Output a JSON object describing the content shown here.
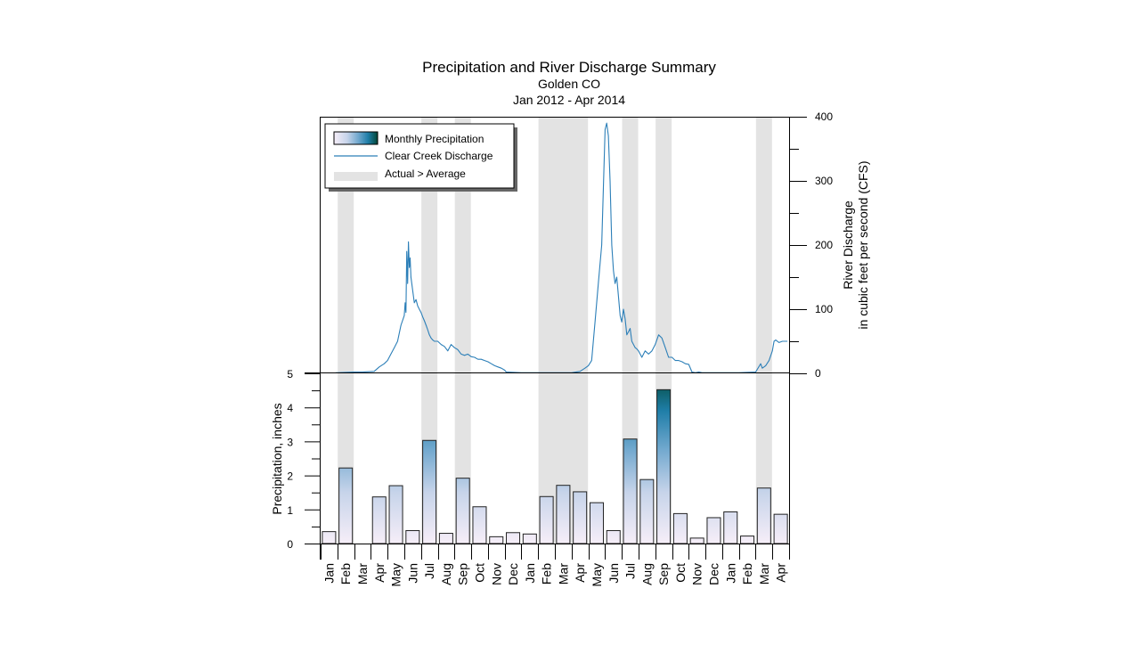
{
  "chart_data": {
    "type": "bar+line",
    "title": "Precipitation and River Discharge Summary",
    "subtitle_location": "Golden CO",
    "subtitle_period": "Jan 2012 - Apr 2014",
    "legend": {
      "position": "top-left",
      "precip_label": "Monthly Precipitation",
      "discharge_label": "Clear Creek Discharge",
      "above_avg_label": "Actual > Average"
    },
    "months": [
      "Jan",
      "Feb",
      "Mar",
      "Apr",
      "May",
      "Jun",
      "Jul",
      "Aug",
      "Sep",
      "Oct",
      "Nov",
      "Dec",
      "Jan",
      "Feb",
      "Mar",
      "Apr",
      "May",
      "Jun",
      "Jul",
      "Aug",
      "Sep",
      "Oct",
      "Nov",
      "Dec",
      "Jan",
      "Feb",
      "Mar",
      "Apr"
    ],
    "precip_series_name": "Monthly Precipitation (inches)",
    "precipitation": [
      0.35,
      2.22,
      0.0,
      1.37,
      1.7,
      0.38,
      3.03,
      0.3,
      1.92,
      1.08,
      0.2,
      0.32,
      0.28,
      1.38,
      1.71,
      1.52,
      1.2,
      0.38,
      3.07,
      1.88,
      4.52,
      0.88,
      0.16,
      0.76,
      0.93,
      0.22,
      1.63,
      0.86
    ],
    "above_average_months": [
      "Feb 2012",
      "Jul 2012",
      "Sep 2012",
      "Feb 2013",
      "Mar 2013",
      "Apr 2013",
      "Jul 2013",
      "Sep 2013",
      "Mar 2014"
    ],
    "above_average_indices": [
      1,
      6,
      8,
      13,
      14,
      15,
      18,
      20,
      26
    ],
    "precip_axis": {
      "label": "Precipitation, inches",
      "ylim": [
        0,
        5
      ],
      "ticks": [
        0,
        1,
        2,
        3,
        4,
        5
      ]
    },
    "discharge_axis": {
      "label_line1": "River Discharge",
      "label_line2": "in cubic feet per second (CFS)",
      "ylim": [
        0,
        400
      ],
      "ticks": [
        0,
        100,
        200,
        300,
        400
      ]
    },
    "discharge_series_name": "Clear Creek Discharge (CFS)",
    "discharge": {
      "t": [
        0.9,
        1.0,
        2.0,
        2.5,
        3.2,
        3.5,
        3.8,
        4.0,
        4.2,
        4.4,
        4.6,
        4.8,
        5.0,
        5.05,
        5.1,
        5.15,
        5.2,
        5.25,
        5.3,
        5.35,
        5.4,
        5.5,
        5.6,
        5.7,
        5.8,
        5.9,
        6.0,
        6.1,
        6.2,
        6.3,
        6.4,
        6.5,
        6.6,
        6.7,
        6.8,
        6.9,
        7.0,
        7.2,
        7.4,
        7.6,
        7.8,
        8.0,
        8.2,
        8.4,
        8.6,
        8.8,
        9.0,
        9.2,
        9.4,
        9.6,
        9.8,
        10.0,
        10.2,
        10.4,
        10.6,
        10.8,
        11.0,
        11.1,
        12.0,
        13.0,
        14.0,
        15.0,
        15.5,
        15.8,
        16.0,
        16.2,
        16.4,
        16.6,
        16.8,
        16.9,
        17.0,
        17.1,
        17.2,
        17.3,
        17.4,
        17.5,
        17.6,
        17.7,
        17.8,
        17.9,
        18.0,
        18.1,
        18.2,
        18.3,
        18.4,
        18.5,
        18.6,
        18.7,
        18.8,
        18.9,
        19.0,
        19.2,
        19.4,
        19.6,
        19.8,
        20.0,
        20.2,
        20.4,
        20.6,
        20.8,
        21.0,
        21.2,
        21.4,
        21.6,
        21.8,
        22.0,
        22.2,
        22.4,
        22.6,
        22.8,
        23.0,
        23.2,
        23.4,
        24.0,
        25.0,
        26.0,
        26.3,
        26.4,
        26.6,
        26.8,
        27.0,
        27.1,
        27.2,
        27.4,
        27.6,
        27.9
      ],
      "cfs": [
        1,
        1,
        2,
        2,
        3,
        10,
        15,
        20,
        30,
        40,
        50,
        75,
        90,
        110,
        95,
        190,
        140,
        205,
        165,
        180,
        150,
        130,
        110,
        115,
        105,
        100,
        95,
        88,
        82,
        75,
        68,
        60,
        55,
        52,
        50,
        50,
        50,
        45,
        42,
        35,
        45,
        40,
        37,
        30,
        28,
        30,
        26,
        25,
        22,
        22,
        20,
        18,
        15,
        12,
        10,
        8,
        5,
        2,
        1,
        1,
        1,
        1,
        3,
        8,
        12,
        20,
        80,
        140,
        200,
        290,
        380,
        390,
        370,
        300,
        200,
        160,
        140,
        150,
        120,
        90,
        80,
        100,
        85,
        60,
        65,
        70,
        50,
        45,
        40,
        38,
        35,
        25,
        35,
        30,
        35,
        45,
        60,
        55,
        40,
        25,
        25,
        20,
        20,
        18,
        15,
        14,
        2,
        1,
        2,
        1,
        1,
        1,
        1,
        1,
        1,
        2,
        15,
        8,
        12,
        20,
        35,
        50,
        52,
        48,
        50,
        50
      ]
    }
  }
}
